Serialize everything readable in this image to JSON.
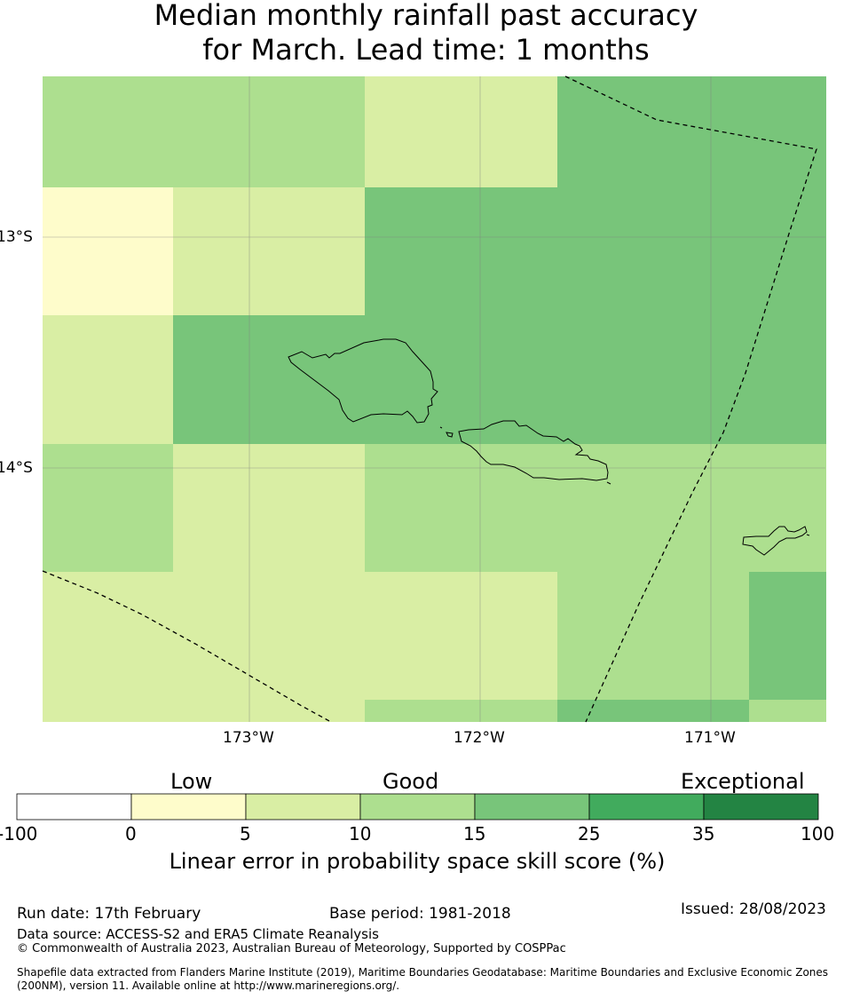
{
  "title_line1": "Median monthly rainfall past accuracy",
  "title_line2": "for March. Lead time: 1 months",
  "map": {
    "lat_ticks": [
      "13°S",
      "14°S"
    ],
    "lon_ticks": [
      "173°W",
      "172°W",
      "171°W"
    ],
    "colors": {
      "c0_5": "#fefccb",
      "c5_10": "#d9eea4",
      "c10_15": "#addf8f",
      "c15_25": "#78c57a",
      "c25_35": "#41ab5d",
      "c35_100": "#238443",
      "land_outline": "#000000",
      "boundary": "#000000",
      "gridline": "#808080"
    },
    "grid_categories": [
      [
        "10-15",
        "10-15",
        "5-10",
        "15-25",
        "15-25"
      ],
      [
        "0-5",
        "5-10",
        "15-25",
        "15-25",
        "15-25"
      ],
      [
        "5-10",
        "15-25",
        "15-25",
        "15-25",
        "15-25"
      ],
      [
        "10-15",
        "5-10",
        "10-15",
        "10-15",
        "10-15"
      ],
      [
        "5-10",
        "5-10",
        "5-10",
        "10-15",
        "15-25"
      ],
      [
        "5-10",
        "5-10",
        "10-15",
        "15-25",
        "10-15"
      ]
    ]
  },
  "colorbar": {
    "categories": [
      "Low",
      "Good",
      "Exceptional"
    ],
    "ticks": [
      "-100",
      "0",
      "5",
      "10",
      "15",
      "25",
      "35",
      "100"
    ],
    "bin_colors": [
      "#ffffff",
      "#fefccb",
      "#d9eea4",
      "#addf8f",
      "#78c57a",
      "#41ab5d",
      "#238443"
    ],
    "label": "Linear error in probability space skill score (%)"
  },
  "footer": {
    "run_date": "Run date: 17th February",
    "base_period": "Base period: 1981-2018",
    "issued": "Issued: 28/08/2023",
    "data_source": "Data source: ACCESS-S2 and ERA5 Climate Reanalysis",
    "copyright": "© Commonwealth of Australia 2023, Australian Bureau of Meteorology, Supported by COSPPac",
    "shapefile_line1": "Shapefile data extracted from Flanders Marine Institute (2019), Maritime Boundaries Geodatabase: Maritime Boundaries and Exclusive Economic Zones",
    "shapefile_line2": "(200NM), version 11. Available online at http://www.marineregions.org/."
  }
}
